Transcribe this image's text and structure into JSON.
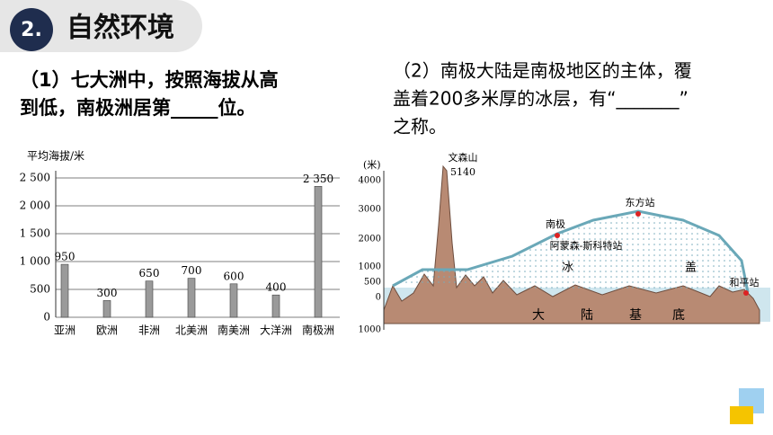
{
  "header": {
    "number": "2.",
    "title": "自然环境"
  },
  "question1": {
    "lines": [
      "（1）七大洲中，按照海拔从高",
      "到低，南极洲居第_____位。"
    ]
  },
  "question2": {
    "lines": [
      "（2）南极大陆是南极地区的主体，覆",
      "盖着200多米厚的冰层，有“_______”",
      "之称。"
    ]
  },
  "chart_data": {
    "type": "bar",
    "y_label": "平均海拔/米",
    "categories": [
      "亚洲",
      "欧洲",
      "非洲",
      "北美洲",
      "南美洲",
      "大洋洲",
      "南极洲"
    ],
    "values": [
      950,
      300,
      650,
      700,
      600,
      400,
      2350
    ],
    "value_labels": [
      "950",
      "300",
      "650",
      "700",
      "600",
      "400",
      "2 350"
    ],
    "color": "#9a9a9a",
    "ylim": [
      0,
      2500
    ],
    "yticks": [
      0,
      500,
      {
        "value": 1000,
        "label": "1 000"
      },
      {
        "value": 1500,
        "label": "1 500"
      },
      {
        "value": 2000,
        "label": "2 000"
      },
      {
        "value": 2500,
        "label": "2 500"
      }
    ],
    "grid": true
  },
  "diagram": {
    "unit": "(米)",
    "scale": [
      "4000",
      "3000",
      "2000",
      "1000",
      "500",
      "0",
      "1000"
    ],
    "peak": "文森山",
    "peak_height": "5140",
    "south_pole": "南极",
    "station1": "阿蒙森-斯科特站",
    "station2": "东方站",
    "station3": "和平站",
    "ice": [
      "冰",
      "盖"
    ],
    "base": [
      "大",
      "陆",
      "基",
      "底"
    ]
  }
}
